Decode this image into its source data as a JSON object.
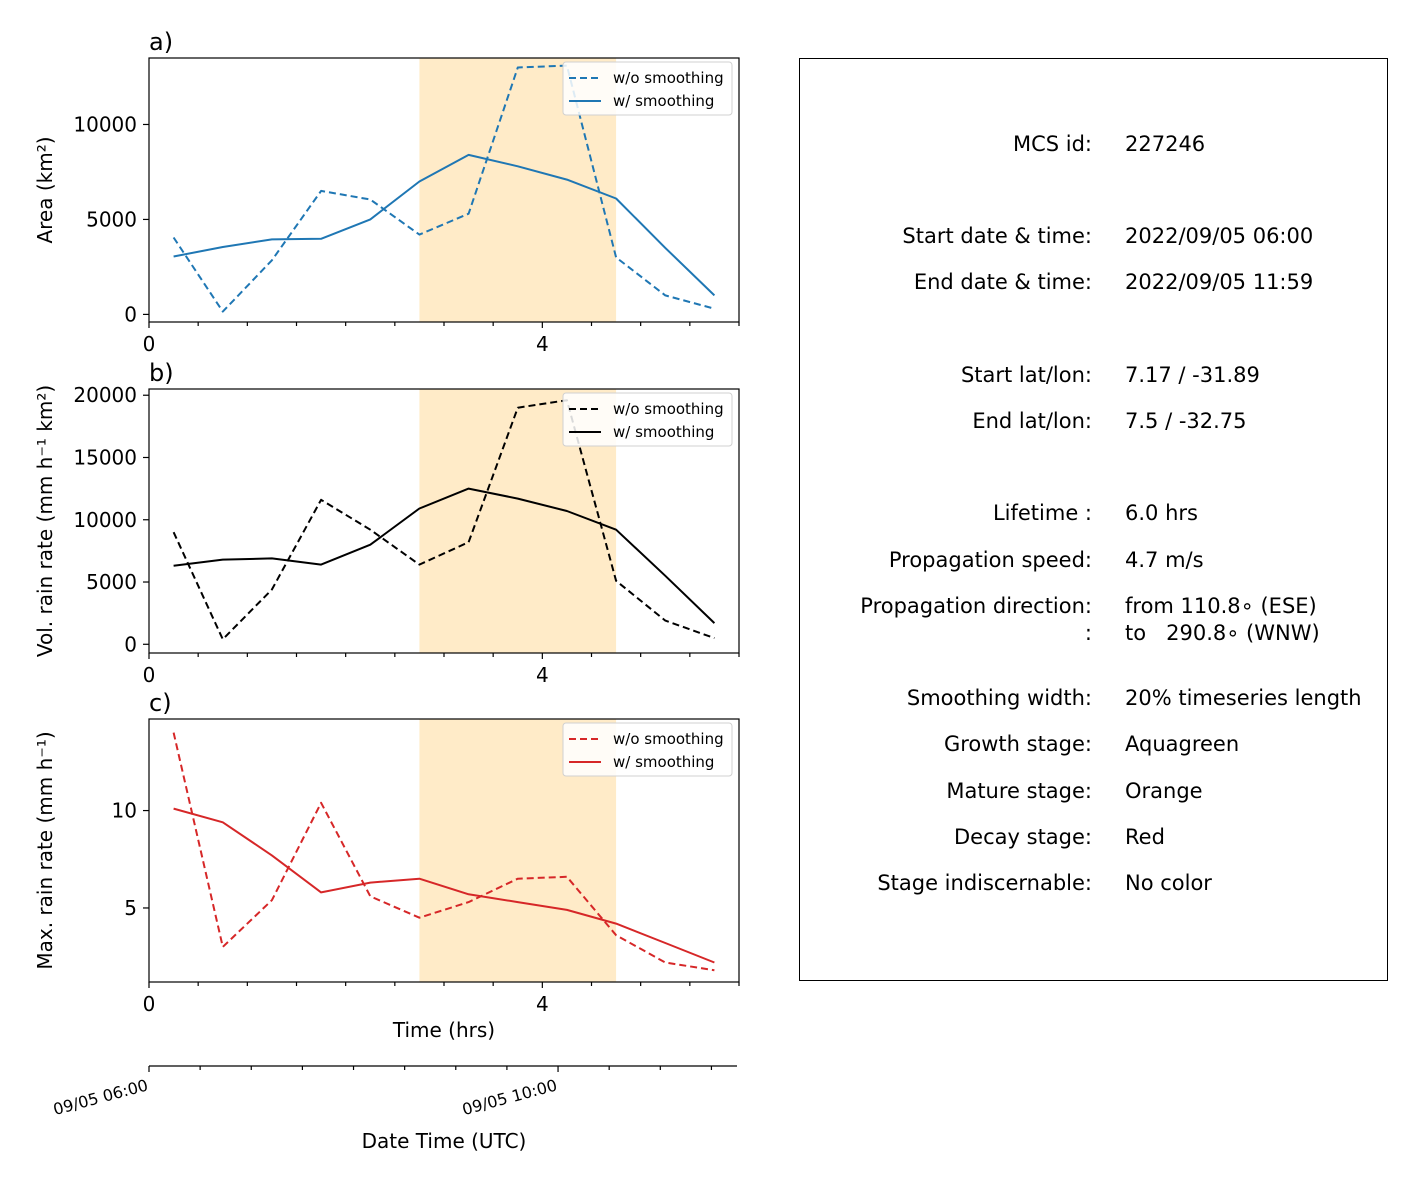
{
  "chart_data": [
    {
      "type": "line",
      "panel_label": "a)",
      "ylabel": "Area  (km²)",
      "ylim": [
        -400,
        13500
      ],
      "xlim": [
        0,
        6
      ],
      "yticks": [
        0,
        5000,
        10000
      ],
      "xticks": [
        0,
        4
      ],
      "shaded_span": [
        2.75,
        4.75
      ],
      "series": [
        {
          "name": "w/o smoothing",
          "style": "dashed",
          "color": "#1f77b4",
          "x": [
            0.25,
            0.75,
            1.25,
            1.75,
            2.25,
            2.75,
            3.25,
            3.75,
            4.25,
            4.75,
            5.25,
            5.75
          ],
          "values": [
            4050,
            150,
            2850,
            6500,
            6050,
            4200,
            5300,
            13000,
            13100,
            3000,
            1000,
            300
          ]
        },
        {
          "name": "w/ smoothing",
          "style": "solid",
          "color": "#1f77b4",
          "x": [
            0.25,
            0.75,
            1.25,
            1.75,
            2.25,
            2.75,
            3.25,
            3.75,
            4.25,
            4.75,
            5.25,
            5.75
          ],
          "values": [
            3050,
            3550,
            3950,
            3980,
            5000,
            7000,
            8400,
            7800,
            7100,
            6100,
            3500,
            1000
          ]
        }
      ]
    },
    {
      "type": "line",
      "panel_label": "b)",
      "ylabel": "Vol. rain rate (mm h⁻¹ km²)",
      "ylim": [
        -700,
        20500
      ],
      "xlim": [
        0,
        6
      ],
      "yticks": [
        0,
        5000,
        10000,
        15000,
        20000
      ],
      "xticks": [
        0,
        4
      ],
      "shaded_span": [
        2.75,
        4.75
      ],
      "series": [
        {
          "name": "w/o smoothing",
          "style": "dashed",
          "color": "#000000",
          "x": [
            0.25,
            0.75,
            1.25,
            1.75,
            2.25,
            2.75,
            3.25,
            3.75,
            4.25,
            4.75,
            5.25,
            5.75
          ],
          "values": [
            9000,
            400,
            4400,
            11600,
            9200,
            6400,
            8200,
            19000,
            19600,
            5100,
            1900,
            500
          ]
        },
        {
          "name": "w/ smoothing",
          "style": "solid",
          "color": "#000000",
          "x": [
            0.25,
            0.75,
            1.25,
            1.75,
            2.25,
            2.75,
            3.25,
            3.75,
            4.25,
            4.75,
            5.25,
            5.75
          ],
          "values": [
            6300,
            6800,
            6900,
            6400,
            8000,
            10900,
            12500,
            11700,
            10700,
            9200,
            5500,
            1700
          ]
        }
      ]
    },
    {
      "type": "line",
      "panel_label": "c)",
      "ylabel": "Max. rain rate  (mm h⁻¹)",
      "ylim": [
        1.2,
        14.7
      ],
      "xlim": [
        0,
        6
      ],
      "yticks": [
        5,
        10
      ],
      "xticks": [
        0,
        4
      ],
      "xlabel": "Time (hrs)",
      "shaded_span": [
        2.75,
        4.75
      ],
      "series": [
        {
          "name": "w/o smoothing",
          "style": "dashed",
          "color": "#d62728",
          "x": [
            0.25,
            0.75,
            1.25,
            1.75,
            2.25,
            2.75,
            3.25,
            3.75,
            4.25,
            4.75,
            5.25,
            5.75
          ],
          "values": [
            14.0,
            3.0,
            5.4,
            10.4,
            5.6,
            4.5,
            5.3,
            6.5,
            6.6,
            3.6,
            2.2,
            1.8
          ]
        },
        {
          "name": "w/ smoothing",
          "style": "solid",
          "color": "#d62728",
          "x": [
            0.25,
            0.75,
            1.25,
            1.75,
            2.25,
            2.75,
            3.25,
            3.75,
            4.25,
            4.75,
            5.25,
            5.75
          ],
          "values": [
            10.1,
            9.4,
            7.7,
            5.8,
            6.3,
            6.5,
            5.7,
            5.3,
            4.9,
            4.2,
            3.2,
            2.2
          ]
        }
      ]
    }
  ],
  "date_axis": {
    "xlabel": "Date Time (UTC)",
    "tick_labels": [
      "09/05 06:00",
      "09/05 10:00"
    ],
    "tick_dates": [
      "2022-09-05 06:00",
      "2022-09-05 10:00"
    ]
  },
  "shade_color": "#ffebc8",
  "info": [
    {
      "label": "MCS id:",
      "value": "227246"
    },
    {
      "label": "Start date & time:",
      "value": "2022/09/05 06:00"
    },
    {
      "label": "End date & time:",
      "value": "2022/09/05 11:59"
    },
    {
      "label": "Start lat/lon:",
      "value": "7.17 / -31.89"
    },
    {
      "label": "End lat/lon:",
      "value": "7.5 / -32.75"
    },
    {
      "label": "Lifetime :",
      "value": "6.0 hrs"
    },
    {
      "label": "Propagation speed:",
      "value": "4.7 m/s"
    },
    {
      "label": "Propagation direction:",
      "value": "from 110.8∘ (ESE)"
    },
    {
      "label": ":",
      "value": "to   290.8∘ (WNW)"
    },
    {
      "label": "Smoothing width:",
      "value": "20% timeseries length"
    },
    {
      "label": "Growth stage:",
      "value": "Aquagreen"
    },
    {
      "label": "Mature stage:",
      "value": "Orange"
    },
    {
      "label": "Decay stage:",
      "value": "Red"
    },
    {
      "label": "Stage indiscernable:",
      "value": "No color"
    }
  ]
}
